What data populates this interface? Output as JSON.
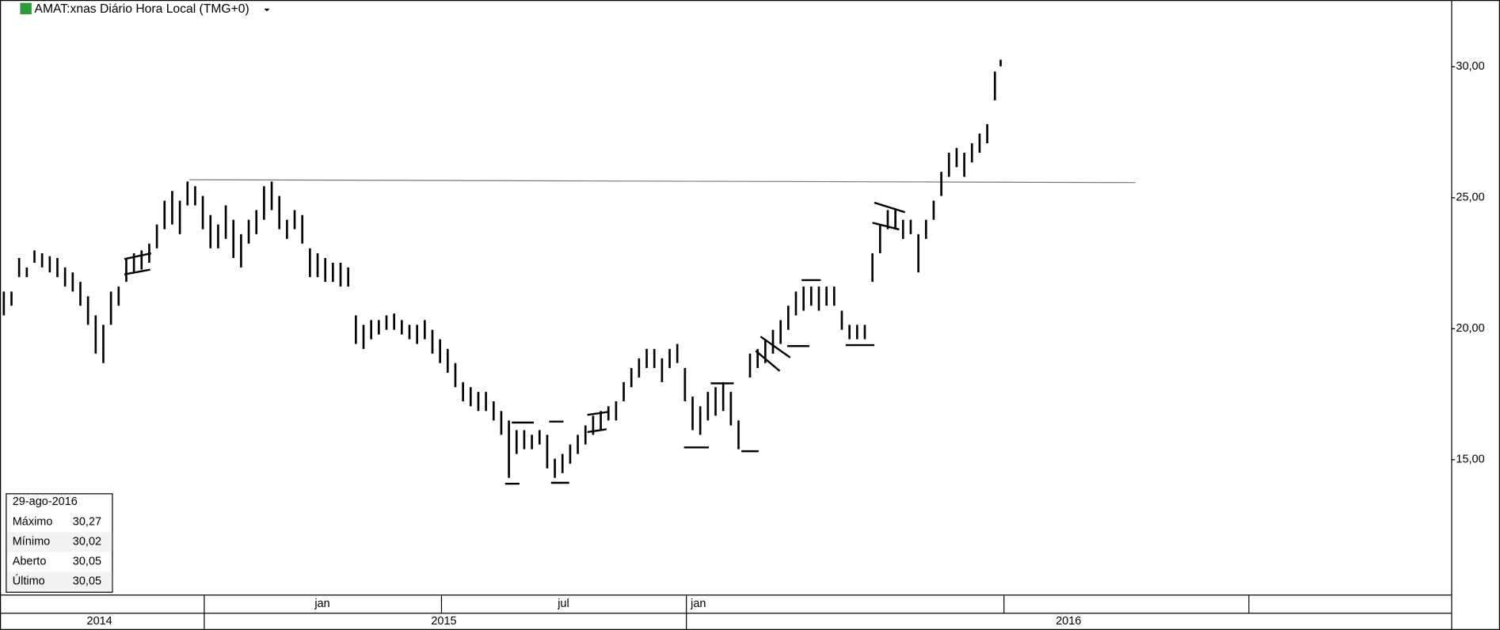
{
  "chart_data": {
    "type": "ohlc",
    "title": "AMAT:xnas Diário Hora Local (TMG+0)",
    "color": "#000000",
    "x": [
      1,
      3,
      5,
      7,
      9,
      11,
      13,
      15,
      17,
      19,
      21,
      23,
      25,
      27,
      29,
      31,
      33,
      35,
      37,
      39,
      41,
      43,
      45,
      47,
      49,
      51,
      53,
      55,
      57,
      59,
      61,
      63,
      65,
      67,
      69,
      71,
      73,
      75,
      77,
      79,
      81,
      83,
      85,
      87,
      89,
      91,
      93,
      95,
      97,
      99,
      101,
      103,
      105,
      107,
      109,
      111,
      113,
      115,
      117,
      119,
      121,
      123,
      125,
      127,
      129,
      131,
      133,
      135,
      137,
      139,
      141,
      143,
      145,
      147,
      149,
      151,
      153,
      155,
      157,
      159,
      161,
      163,
      165,
      167,
      169,
      171,
      173,
      175,
      177,
      179,
      181,
      183,
      185,
      187,
      189,
      191,
      193,
      196,
      198,
      200,
      202,
      204,
      206,
      208,
      210,
      212,
      214,
      216,
      218,
      220,
      222,
      224,
      226,
      228,
      230,
      232,
      234,
      236,
      238,
      240,
      242,
      244,
      246,
      248,
      250,
      252,
      254,
      256,
      258,
      260,
      261.5
    ],
    "series": [
      {
        "name": "high",
        "values": [
          21.42,
          21.42,
          22.7,
          22.34,
          22.99,
          22.88,
          22.77,
          22.7,
          22.34,
          22.15,
          21.79,
          21.24,
          20.51,
          20.15,
          21.42,
          21.61,
          22.7,
          22.88,
          22.99,
          23.25,
          23.98,
          24.89,
          25.26,
          24.89,
          25.62,
          25.44,
          25.07,
          24.34,
          23.98,
          24.71,
          24.16,
          23.61,
          24.16,
          24.53,
          25.44,
          25.62,
          25.07,
          24.16,
          24.53,
          24.34,
          23.07,
          22.88,
          22.7,
          22.52,
          22.52,
          22.34,
          20.51,
          20.15,
          20.33,
          20.33,
          20.51,
          20.58,
          20.33,
          20.15,
          20.15,
          20.33,
          19.96,
          19.6,
          19.23,
          18.69,
          17.96,
          17.77,
          17.59,
          17.59,
          17.23,
          16.86,
          16.5,
          16.13,
          16.13,
          15.95,
          16.13,
          15.95,
          15.04,
          15.22,
          15.58,
          15.95,
          16.31,
          16.68,
          16.86,
          17.04,
          17.23,
          17.96,
          18.5,
          18.87,
          19.23,
          19.23,
          18.87,
          19.23,
          19.42,
          18.5,
          17.41,
          17.04,
          17.59,
          17.77,
          17.96,
          17.59,
          16.5,
          19.05,
          19.23,
          19.6,
          19.96,
          20.33,
          20.88,
          21.42,
          21.61,
          21.61,
          21.61,
          21.61,
          21.61,
          20.69,
          20.15,
          20.15,
          20.15,
          22.88,
          23.98,
          24.53,
          24.53,
          24.16,
          24.16,
          23.61,
          24.16,
          24.89,
          25.99,
          26.72,
          26.9,
          26.72,
          27.08,
          27.45,
          27.81,
          29.82,
          30.27
        ]
      },
      {
        "name": "low",
        "values": [
          20.51,
          20.88,
          21.97,
          21.97,
          22.52,
          22.34,
          22.15,
          21.97,
          21.61,
          21.42,
          20.88,
          20.15,
          19.05,
          18.69,
          20.15,
          20.88,
          21.79,
          22.15,
          22.26,
          22.52,
          23.07,
          23.8,
          23.98,
          23.61,
          24.71,
          24.71,
          23.8,
          23.07,
          23.07,
          23.43,
          22.7,
          22.34,
          23.25,
          23.61,
          24.16,
          24.53,
          23.8,
          23.43,
          23.8,
          23.25,
          21.97,
          21.97,
          21.79,
          21.79,
          21.61,
          21.61,
          19.42,
          19.23,
          19.6,
          19.78,
          19.96,
          19.96,
          19.78,
          19.6,
          19.42,
          19.6,
          19.05,
          18.69,
          18.32,
          17.77,
          17.23,
          17.04,
          16.86,
          16.86,
          16.5,
          15.95,
          14.31,
          15.22,
          15.4,
          15.4,
          15.58,
          14.67,
          14.31,
          14.49,
          14.85,
          15.22,
          15.58,
          15.95,
          16.13,
          16.5,
          16.5,
          17.23,
          17.77,
          18.14,
          18.5,
          18.5,
          17.96,
          18.5,
          18.69,
          17.23,
          16.13,
          15.95,
          16.5,
          16.68,
          16.86,
          16.31,
          15.4,
          18.14,
          18.5,
          18.69,
          19.05,
          19.42,
          19.96,
          20.51,
          20.69,
          20.88,
          20.69,
          20.88,
          20.88,
          19.96,
          19.6,
          19.6,
          19.6,
          21.79,
          22.88,
          23.8,
          23.8,
          23.43,
          23.61,
          22.15,
          23.43,
          24.16,
          25.07,
          25.8,
          26.17,
          25.8,
          26.35,
          26.72,
          27.08,
          28.72,
          30.02
        ]
      }
    ],
    "xlim": [
      0,
      379.25
    ],
    "ylim": [
      9.85,
      32.55
    ],
    "yticks": [
      {
        "value": 15,
        "label": "15,00"
      },
      {
        "value": 20,
        "label": "20,00"
      },
      {
        "value": 25,
        "label": "25,00"
      },
      {
        "value": 30,
        "label": "30,00"
      }
    ],
    "time_axis": {
      "months": [
        "jan",
        "jul",
        "jan"
      ],
      "years": [
        "2014",
        "2015",
        "2016"
      ]
    },
    "info": {
      "date": "29-ago-2016",
      "rows": [
        [
          "Máximo",
          "30,27"
        ],
        [
          "Mínimo",
          "30,02"
        ],
        [
          "Aberto",
          "30,05"
        ],
        [
          "Último",
          "30,05"
        ]
      ]
    }
  }
}
